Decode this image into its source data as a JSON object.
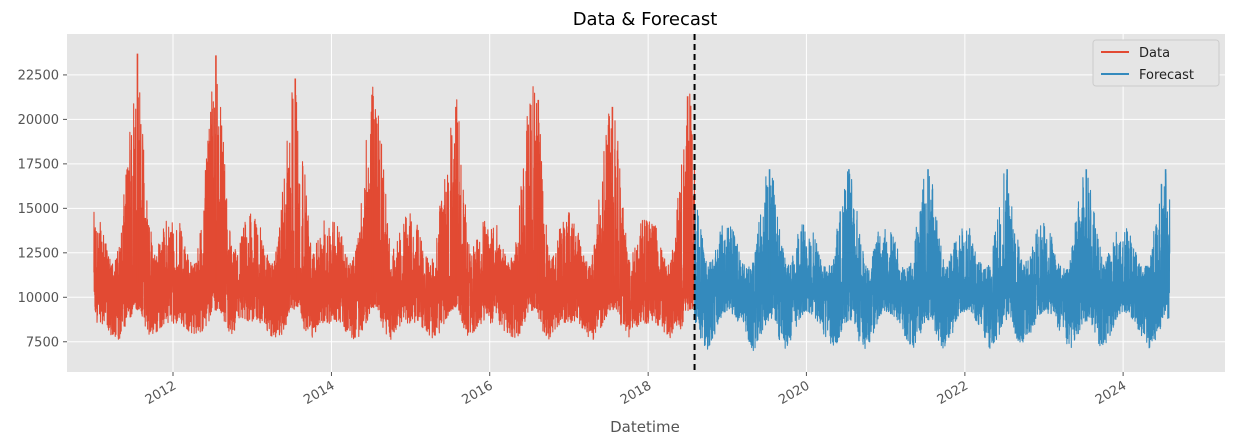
{
  "chart_data": {
    "type": "line",
    "title": "Data & Forecast",
    "xlabel": "Datetime",
    "ylabel": "",
    "x_range": [
      "2010-08-30",
      "2025-04-15"
    ],
    "ylim": [
      5800,
      24800
    ],
    "x_ticks": [
      "2012",
      "2014",
      "2016",
      "2018",
      "2020",
      "2022",
      "2024"
    ],
    "y_ticks": [
      7500,
      10000,
      12500,
      15000,
      17500,
      20000,
      22500
    ],
    "y_tick_labels": [
      "7500",
      "10000",
      "12500",
      "15000",
      "17500",
      "20000",
      "22500"
    ],
    "grid": true,
    "legend_position": "top-right",
    "split_marker": {
      "x": "2018-08-03",
      "style": "dashed",
      "color": "#000000"
    },
    "series": [
      {
        "name": "Data",
        "color": "#E24A33",
        "x_start": "2011-01-01",
        "x_end": "2018-08-03",
        "baseline": 10800,
        "seasonal_envelope": {
          "month_mid": [
            "Jan",
            "Feb",
            "Mar",
            "Apr",
            "May",
            "Jun",
            "Jul",
            "Aug",
            "Sep",
            "Oct",
            "Nov",
            "Dec"
          ],
          "low": [
            8500,
            8600,
            8200,
            7700,
            7600,
            8200,
            9200,
            9300,
            8100,
            7600,
            8200,
            8600
          ],
          "high": [
            14800,
            14200,
            12800,
            11800,
            13200,
            17500,
            22000,
            21800,
            17000,
            12500,
            13200,
            14500
          ]
        },
        "yearly_peaks": [
          {
            "x": "2011-07-21",
            "y": 23700
          },
          {
            "x": "2012-07-17",
            "y": 23600
          },
          {
            "x": "2013-07-18",
            "y": 22300
          },
          {
            "x": "2014-07-08",
            "y": 20300
          },
          {
            "x": "2015-07-29",
            "y": 20700
          },
          {
            "x": "2016-08-12",
            "y": 21100
          },
          {
            "x": "2017-07-20",
            "y": 20700
          },
          {
            "x": "2018-07-02",
            "y": 21300
          }
        ],
        "min_value": 7300
      },
      {
        "name": "Forecast",
        "color": "#348ABD",
        "x_start": "2018-08-03",
        "x_end": "2024-08-03",
        "baseline": 10700,
        "seasonal_envelope": {
          "month_mid": [
            "Jan",
            "Feb",
            "Mar",
            "Apr",
            "May",
            "Jun",
            "Jul",
            "Aug",
            "Sep",
            "Oct",
            "Nov",
            "Dec"
          ],
          "low": [
            9200,
            9000,
            8400,
            7600,
            7000,
            7600,
            8600,
            8700,
            7500,
            7000,
            7800,
            8800
          ],
          "high": [
            14200,
            13800,
            12400,
            11600,
            12000,
            14800,
            17100,
            16800,
            14000,
            11800,
            12600,
            14000
          ]
        },
        "yearly_peaks": [
          {
            "x": "2019-07-15",
            "y": 17200
          },
          {
            "x": "2020-07-15",
            "y": 17200
          },
          {
            "x": "2021-07-15",
            "y": 17200
          },
          {
            "x": "2022-07-15",
            "y": 17200
          },
          {
            "x": "2023-07-15",
            "y": 17200
          },
          {
            "x": "2024-07-15",
            "y": 17200
          }
        ],
        "min_value": 6700
      }
    ]
  }
}
